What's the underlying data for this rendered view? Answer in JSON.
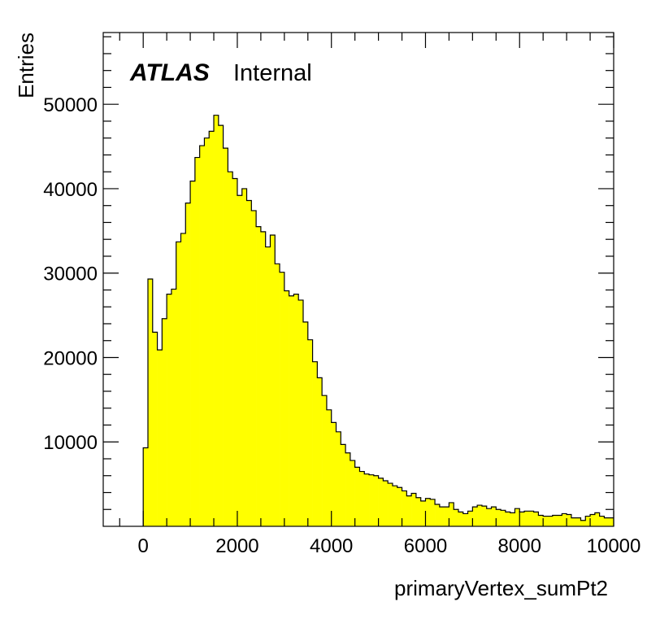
{
  "chart_data": {
    "type": "histogram",
    "label_main": "ATLAS",
    "label_sub": "Internal",
    "xlabel": "primaryVertex_sumPt2",
    "ylabel": "Entries",
    "xlim": [
      -850,
      10000
    ],
    "ylim": [
      0,
      58500
    ],
    "x_ticks": [
      0,
      2000,
      4000,
      6000,
      8000,
      10000
    ],
    "x_tick_labels": [
      "0",
      "2000",
      "4000",
      "6000",
      "8000",
      "10000"
    ],
    "y_ticks": [
      10000,
      20000,
      30000,
      40000,
      50000
    ],
    "y_tick_labels": [
      "10000",
      "20000",
      "30000",
      "40000",
      "50000"
    ],
    "fill_color": "#ffff00",
    "line_color": "#000000",
    "grid": false,
    "bin_width": 100,
    "bin_start": 0,
    "values": [
      9300,
      29300,
      23000,
      20900,
      24600,
      27500,
      28100,
      33700,
      34700,
      38300,
      40900,
      43700,
      45100,
      46000,
      46800,
      48700,
      47500,
      44800,
      42000,
      41200,
      39200,
      40000,
      38600,
      37400,
      35500,
      34900,
      33100,
      34500,
      31100,
      30100,
      27900,
      27300,
      27500,
      26800,
      24200,
      22100,
      19500,
      17600,
      15500,
      13800,
      12300,
      11200,
      9700,
      8700,
      7800,
      7000,
      6500,
      6200,
      6100,
      6000,
      5700,
      5400,
      5100,
      4800,
      4600,
      4200,
      3600,
      3900,
      3400,
      3000,
      3300,
      3200,
      2600,
      2300,
      2300,
      2800,
      2000,
      1700,
      1500,
      1800,
      2300,
      2500,
      2400,
      2100,
      2300,
      2000,
      1900,
      1700,
      1600,
      2100,
      1700,
      1800,
      1800,
      1700,
      1300,
      1200,
      1200,
      1300,
      1300,
      1500,
      1400,
      1000,
      1000,
      700,
      1200,
      1400,
      1600,
      1200,
      1000,
      1000
    ]
  }
}
